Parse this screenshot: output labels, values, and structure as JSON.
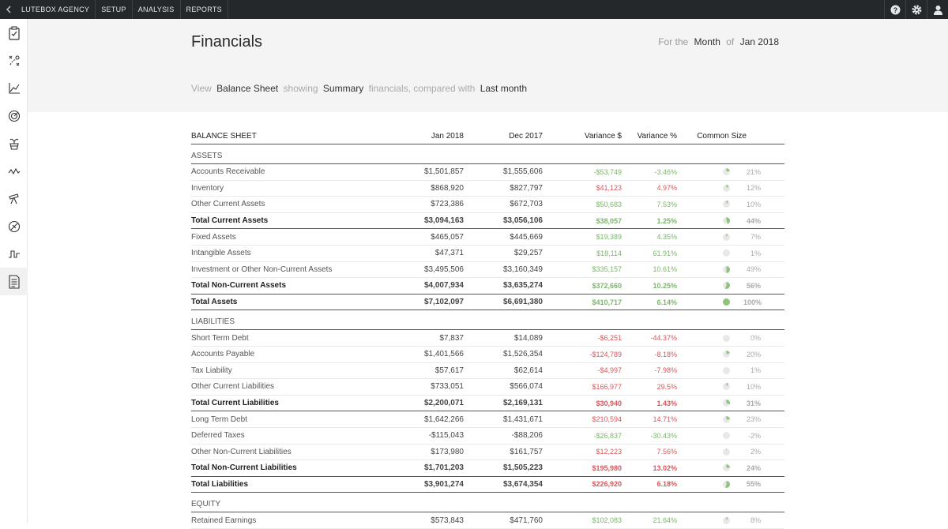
{
  "topbar": {
    "back_icon": "chevron-left-icon",
    "items": [
      "LUTEBOX AGENCY",
      "SETUP",
      "ANALYSIS",
      "REPORTS"
    ],
    "right_icons": [
      "help-icon",
      "gear-icon",
      "user-icon"
    ]
  },
  "rail": {
    "icons": [
      "clipboard-check-icon",
      "strategy-icon",
      "line-chart-icon",
      "target-icon",
      "plant-pot-icon",
      "activity-icon",
      "telescope-icon",
      "compass-icon",
      "pulse-wave-icon",
      "document-icon"
    ],
    "active_index": 9
  },
  "header": {
    "title": "Financials",
    "period_prefix": "For the",
    "period_unit": "Month",
    "period_of": "of",
    "period_value": "Jan 2018",
    "view_prefix": "View",
    "view_report": "Balance Sheet",
    "showing": "showing",
    "view_mode": "Summary",
    "compared": "financials, compared with",
    "compare_to": "Last month"
  },
  "table": {
    "headers": [
      "BALANCE SHEET",
      "Jan 2018",
      "Dec 2017",
      "Variance $",
      "Variance %",
      "Common Size"
    ],
    "colors": {
      "positive": "#7bb66a",
      "negative": "#d9565a",
      "pie": "#8fc27e",
      "pie_track": "#e8e8e8"
    },
    "rows": [
      {
        "type": "section",
        "name": "ASSETS"
      },
      {
        "type": "line",
        "name": "Accounts Receivable",
        "jan": "$1,501,857",
        "dec": "$1,555,606",
        "vd": "-$53,749",
        "vp": "-3.46%",
        "tone": "green",
        "cs": "21%",
        "cs_fill": 0.21
      },
      {
        "type": "line",
        "name": "Inventory",
        "jan": "$868,920",
        "dec": "$827,797",
        "vd": "$41,123",
        "vp": "4.97%",
        "tone": "red",
        "cs": "12%",
        "cs_fill": 0.12
      },
      {
        "type": "line",
        "name": "Other Current Assets",
        "jan": "$723,386",
        "dec": "$672,703",
        "vd": "$50,683",
        "vp": "7.53%",
        "tone": "green",
        "cs": "10%",
        "cs_fill": 0.1
      },
      {
        "type": "total",
        "name": "Total Current Assets",
        "jan": "$3,094,163",
        "dec": "$3,056,106",
        "vd": "$38,057",
        "vp": "1.25%",
        "tone": "green",
        "cs": "44%",
        "cs_fill": 0.44
      },
      {
        "type": "line",
        "name": "Fixed Assets",
        "jan": "$465,057",
        "dec": "$445,669",
        "vd": "$19,389",
        "vp": "4.35%",
        "tone": "green",
        "cs": "7%",
        "cs_fill": 0.07
      },
      {
        "type": "line",
        "name": "Intangible Assets",
        "jan": "$47,371",
        "dec": "$29,257",
        "vd": "$18,114",
        "vp": "61.91%",
        "tone": "green",
        "cs": "1%",
        "cs_fill": 0.01
      },
      {
        "type": "line",
        "name": "Investment or Other Non-Current Assets",
        "jan": "$3,495,506",
        "dec": "$3,160,349",
        "vd": "$335,157",
        "vp": "10.61%",
        "tone": "green",
        "cs": "49%",
        "cs_fill": 0.49
      },
      {
        "type": "total",
        "name": "Total Non-Current Assets",
        "jan": "$4,007,934",
        "dec": "$3,635,274",
        "vd": "$372,660",
        "vp": "10.25%",
        "tone": "green",
        "cs": "56%",
        "cs_fill": 0.56
      },
      {
        "type": "total",
        "name": "Total Assets",
        "jan": "$7,102,097",
        "dec": "$6,691,380",
        "vd": "$410,717",
        "vp": "6.14%",
        "tone": "green",
        "cs": "100%",
        "cs_fill": 1.0
      },
      {
        "type": "section",
        "name": "LIABILITIES"
      },
      {
        "type": "line",
        "name": "Short Term Debt",
        "jan": "$7,837",
        "dec": "$14,089",
        "vd": "-$6,251",
        "vp": "-44.37%",
        "tone": "red",
        "cs": "0%",
        "cs_fill": 0.0
      },
      {
        "type": "line",
        "name": "Accounts Payable",
        "jan": "$1,401,566",
        "dec": "$1,526,354",
        "vd": "-$124,789",
        "vp": "-8.18%",
        "tone": "red",
        "cs": "20%",
        "cs_fill": 0.2
      },
      {
        "type": "line",
        "name": "Tax Liability",
        "jan": "$57,617",
        "dec": "$62,614",
        "vd": "-$4,997",
        "vp": "-7.98%",
        "tone": "red",
        "cs": "1%",
        "cs_fill": 0.01
      },
      {
        "type": "line",
        "name": "Other Current Liabilities",
        "jan": "$733,051",
        "dec": "$566,074",
        "vd": "$166,977",
        "vp": "29.5%",
        "tone": "red",
        "cs": "10%",
        "cs_fill": 0.1
      },
      {
        "type": "total",
        "name": "Total Current Liabilities",
        "jan": "$2,200,071",
        "dec": "$2,169,131",
        "vd": "$30,940",
        "vp": "1.43%",
        "tone": "red",
        "cs": "31%",
        "cs_fill": 0.31
      },
      {
        "type": "line",
        "name": "Long Term Debt",
        "jan": "$1,642,266",
        "dec": "$1,431,671",
        "vd": "$210,594",
        "vp": "14.71%",
        "tone": "red",
        "cs": "23%",
        "cs_fill": 0.23
      },
      {
        "type": "line",
        "name": "Deferred Taxes",
        "jan": "-$115,043",
        "dec": "-$88,206",
        "vd": "-$26,837",
        "vp": "-30.43%",
        "tone": "green",
        "cs": "-2%",
        "cs_fill": 0.0
      },
      {
        "type": "line",
        "name": "Other Non-Current Liabilities",
        "jan": "$173,980",
        "dec": "$161,757",
        "vd": "$12,223",
        "vp": "7.56%",
        "tone": "red",
        "cs": "2%",
        "cs_fill": 0.02
      },
      {
        "type": "total",
        "name": "Total Non-Current Liabilities",
        "jan": "$1,701,203",
        "dec": "$1,505,223",
        "vd": "$195,980",
        "vp": "13.02%",
        "tone": "red",
        "cs": "24%",
        "cs_fill": 0.24
      },
      {
        "type": "total",
        "name": "Total Liabilities",
        "jan": "$3,901,274",
        "dec": "$3,674,354",
        "vd": "$226,920",
        "vp": "6.18%",
        "tone": "red",
        "cs": "55%",
        "cs_fill": 0.55
      },
      {
        "type": "section",
        "name": "EQUITY"
      },
      {
        "type": "line",
        "name": "Retained Earnings",
        "jan": "$573,843",
        "dec": "$471,760",
        "vd": "$102,083",
        "vp": "21.64%",
        "tone": "green",
        "cs": "8%",
        "cs_fill": 0.08
      }
    ]
  }
}
